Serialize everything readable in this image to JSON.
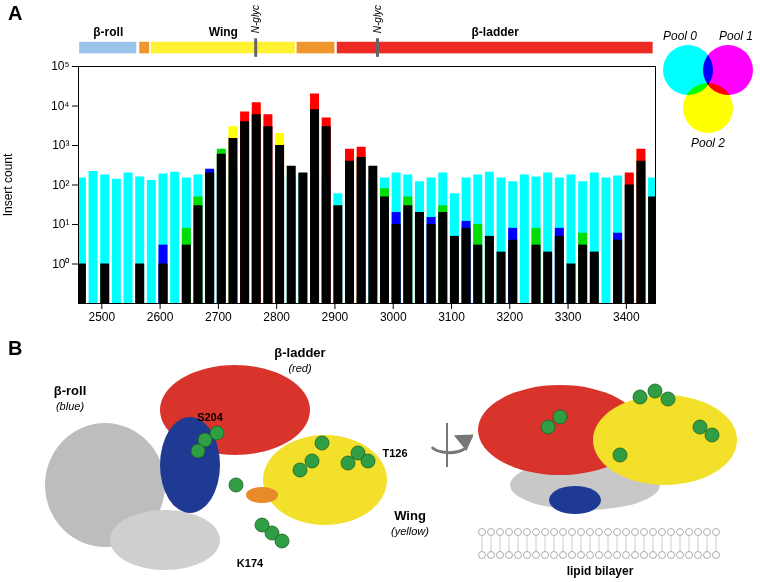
{
  "chart_data": {
    "type": "bar",
    "panel": "A",
    "y_label": "Insert count",
    "log": "y",
    "xlim": [
      2460,
      3450
    ],
    "xticks": [
      2500,
      2600,
      2700,
      2800,
      2900,
      3000,
      3100,
      3200,
      3300,
      3400
    ],
    "ylim": [
      0.1,
      100000
    ],
    "yticks": [
      {
        "value": 1,
        "label": "10⁰"
      },
      {
        "value": 10,
        "label": "10¹"
      },
      {
        "value": 100,
        "label": "10²"
      },
      {
        "value": 1000,
        "label": "10³"
      },
      {
        "value": 10000,
        "label": "10⁴"
      },
      {
        "value": 100000,
        "label": "10⁵"
      }
    ],
    "x": [
      2465,
      2485,
      2505,
      2525,
      2545,
      2565,
      2585,
      2605,
      2625,
      2645,
      2665,
      2685,
      2705,
      2725,
      2745,
      2765,
      2785,
      2805,
      2825,
      2845,
      2865,
      2885,
      2905,
      2925,
      2945,
      2965,
      2985,
      3005,
      3025,
      3045,
      3065,
      3085,
      3105,
      3125,
      3145,
      3165,
      3185,
      3205,
      3225,
      3245,
      3265,
      3285,
      3305,
      3325,
      3345,
      3365,
      3385,
      3405,
      3425,
      3445
    ],
    "series": [
      {
        "color": "#00ffff",
        "values": [
          150,
          220,
          180,
          140,
          200,
          160,
          130,
          190,
          210,
          150,
          180,
          230,
          160,
          200,
          170,
          140,
          210,
          170,
          150,
          190,
          180,
          160,
          60,
          150,
          180,
          120,
          150,
          200,
          180,
          120,
          150,
          200,
          60,
          150,
          180,
          210,
          150,
          120,
          180,
          160,
          200,
          150,
          180,
          120,
          200,
          150,
          170,
          180,
          200,
          150
        ]
      },
      {
        "color": "#ffff00",
        "values": [
          null,
          null,
          null,
          null,
          null,
          null,
          null,
          null,
          null,
          null,
          null,
          null,
          null,
          3000,
          null,
          9000,
          null,
          2000,
          null,
          null,
          15000,
          null,
          null,
          null,
          700,
          null,
          null,
          null,
          null,
          null,
          null,
          null,
          null,
          null,
          null,
          null,
          null,
          null,
          null,
          null,
          null,
          null,
          null,
          null,
          null,
          null,
          null,
          null,
          600,
          null
        ]
      },
      {
        "color": "#ff0000",
        "values": [
          null,
          null,
          null,
          null,
          null,
          null,
          null,
          null,
          null,
          null,
          null,
          null,
          null,
          null,
          7000,
          12000,
          6000,
          null,
          null,
          null,
          20000,
          5000,
          null,
          800,
          900,
          null,
          null,
          null,
          null,
          null,
          null,
          null,
          null,
          null,
          null,
          null,
          null,
          null,
          null,
          null,
          null,
          null,
          null,
          null,
          null,
          null,
          null,
          200,
          800,
          null
        ]
      },
      {
        "color": "#00dd00",
        "values": [
          null,
          null,
          null,
          null,
          null,
          null,
          null,
          null,
          null,
          8,
          50,
          null,
          800,
          null,
          null,
          null,
          null,
          null,
          null,
          null,
          null,
          null,
          null,
          null,
          null,
          null,
          80,
          null,
          50,
          null,
          null,
          30,
          null,
          null,
          10,
          null,
          null,
          null,
          null,
          8,
          null,
          null,
          null,
          6,
          null,
          null,
          null,
          null,
          null,
          null
        ]
      },
      {
        "color": "#0000ff",
        "values": [
          null,
          null,
          null,
          null,
          null,
          null,
          null,
          3,
          null,
          null,
          null,
          250,
          null,
          null,
          null,
          null,
          null,
          null,
          null,
          null,
          null,
          null,
          null,
          null,
          null,
          null,
          null,
          20,
          null,
          null,
          15,
          null,
          null,
          12,
          null,
          null,
          null,
          8,
          null,
          null,
          null,
          8,
          null,
          null,
          null,
          null,
          6,
          null,
          null,
          null
        ]
      },
      {
        "color": "#000000",
        "values": [
          1,
          null,
          1,
          null,
          null,
          1,
          null,
          1,
          null,
          3,
          30,
          200,
          600,
          1500,
          4000,
          6000,
          3000,
          1000,
          300,
          200,
          8000,
          3000,
          30,
          400,
          500,
          300,
          50,
          10,
          30,
          20,
          10,
          20,
          5,
          8,
          3,
          5,
          2,
          4,
          null,
          3,
          2,
          5,
          1,
          3,
          2,
          null,
          4,
          100,
          400,
          50
        ]
      }
    ],
    "domains": [
      {
        "label": "β-roll",
        "start": 2462,
        "end": 2560,
        "color": "#9cc3ea"
      },
      {
        "start": 2565,
        "end": 2582,
        "color": "#f0962e"
      },
      {
        "label": "Wing",
        "start": 2585,
        "end": 2832,
        "color": "#fff233"
      },
      {
        "start": 2835,
        "end": 2900,
        "color": "#f0962e"
      },
      {
        "label": "β-ladder",
        "start": 2904,
        "end": 3446,
        "color": "#ee2a24"
      }
    ],
    "glycosylation": [
      {
        "label": "N-glyc",
        "x": 2764
      },
      {
        "label": "N-glyc",
        "x": 2973
      }
    ],
    "venn": [
      {
        "name": "Pool 0",
        "color": "#00ffff"
      },
      {
        "name": "Pool 1",
        "color": "#ff00ff"
      },
      {
        "name": "Pool 2",
        "color": "#ffff00"
      }
    ]
  },
  "structure": {
    "panel": "B",
    "domains": [
      {
        "name": "β-ladder",
        "color_name": "(red)"
      },
      {
        "name": "β-roll",
        "color_name": "(blue)"
      },
      {
        "name": "Wing",
        "color_name": "(yellow)"
      }
    ],
    "residues": [
      "S204",
      "T126",
      "K174"
    ],
    "membrane": "lipid bilayer"
  }
}
